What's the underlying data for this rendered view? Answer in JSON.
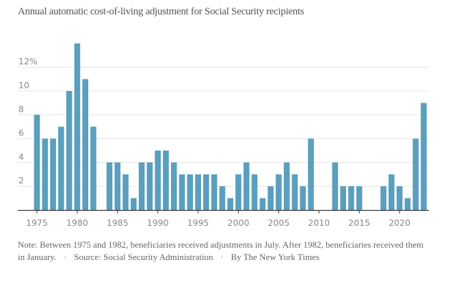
{
  "chart_data": {
    "type": "bar",
    "title": "Annual automatic cost-of-living adjustment for Social Security recipients",
    "xlabel": "",
    "ylabel": "",
    "ylim": [
      0,
      14
    ],
    "grid": true,
    "y_ticks": [
      {
        "value": 2,
        "label": "2"
      },
      {
        "value": 4,
        "label": "4"
      },
      {
        "value": 6,
        "label": "6"
      },
      {
        "value": 8,
        "label": "8"
      },
      {
        "value": 10,
        "label": "10"
      },
      {
        "value": 12,
        "label": "12%"
      }
    ],
    "x_ticks": [
      1975,
      1980,
      1985,
      1990,
      1995,
      2000,
      2005,
      2010,
      2015,
      2020
    ],
    "color": "#5a9fbd",
    "categories": [
      1975,
      1976,
      1977,
      1978,
      1979,
      1980,
      1981,
      1982,
      1983,
      1984,
      1985,
      1986,
      1987,
      1988,
      1989,
      1990,
      1991,
      1992,
      1993,
      1994,
      1995,
      1996,
      1997,
      1998,
      1999,
      2000,
      2001,
      2002,
      2003,
      2004,
      2005,
      2006,
      2007,
      2008,
      2009,
      2010,
      2011,
      2012,
      2013,
      2014,
      2015,
      2016,
      2017,
      2018,
      2019,
      2020,
      2021,
      2022,
      2023
    ],
    "values": [
      8,
      6,
      6,
      7,
      10,
      14,
      11,
      7,
      0,
      4,
      4,
      3,
      1,
      4,
      4,
      5,
      5,
      4,
      3,
      3,
      3,
      3,
      3,
      2,
      1,
      3,
      4,
      3,
      1,
      2,
      3,
      4,
      3,
      2,
      6,
      0,
      0,
      4,
      2,
      2,
      2,
      0,
      0,
      2,
      3,
      2,
      1,
      6,
      9
    ]
  },
  "footer": {
    "note": "Note: Between 1975 and 1982, beneficiaries received adjustments in July. After 1982, beneficiaries received them in January.",
    "separator": "•",
    "source": "Source: Social Security Administration",
    "credit": "By The New York Times"
  }
}
